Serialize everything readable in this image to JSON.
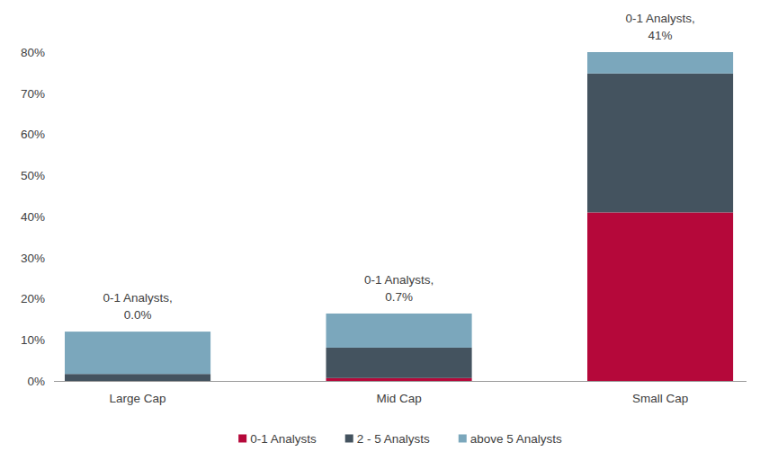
{
  "chart_data": {
    "type": "bar",
    "stacked": true,
    "categories": [
      "Large Cap",
      "Mid Cap",
      "Small Cap"
    ],
    "series": [
      {
        "name": "0-1 Analysts",
        "color": "#b5083a",
        "values": [
          0,
          0.7,
          41
        ],
        "value_labels": [
          "0.0%",
          "0.7%",
          "41%"
        ]
      },
      {
        "name": "2 - 5 Analysts",
        "color": "#44535f",
        "values": [
          1.7,
          7.4,
          33.8
        ]
      },
      {
        "name": "above 5 Analysts",
        "color": "#7ba7bc",
        "values": [
          10.3,
          8.3,
          5.2
        ]
      }
    ],
    "annotations": [
      "0-1 Analysts,",
      "0-1 Analysts,",
      "0-1 Analysts,"
    ],
    "ylim": [
      0,
      80
    ],
    "yticks": [
      {
        "value": 0,
        "label": "0%"
      },
      {
        "value": 10,
        "label": "10%"
      },
      {
        "value": 20,
        "label": "20%"
      },
      {
        "value": 30,
        "label": "30%"
      },
      {
        "value": 40,
        "label": "40%"
      },
      {
        "value": 50,
        "label": "50%"
      },
      {
        "value": 60,
        "label": "60%"
      },
      {
        "value": 70,
        "label": "70%"
      },
      {
        "value": 80,
        "label": "80%"
      }
    ],
    "data_labels": true,
    "legend": "bottom",
    "grid": false
  }
}
